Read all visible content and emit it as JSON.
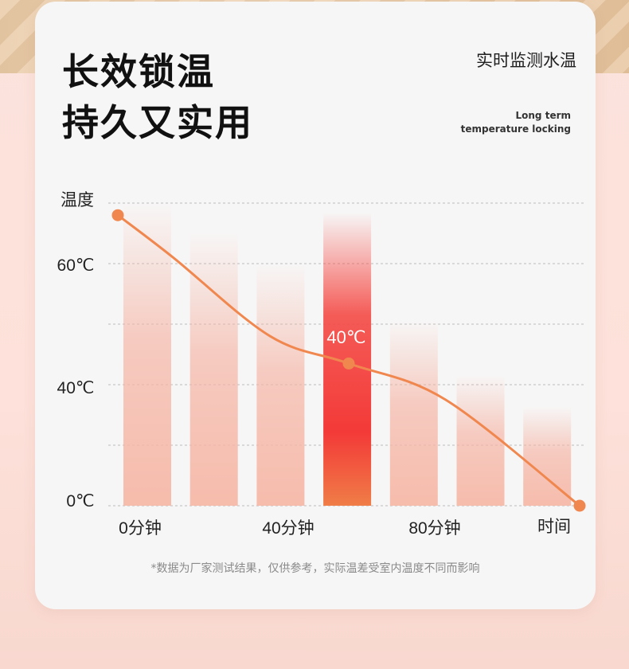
{
  "header": {
    "title_line1": "长效锁温",
    "title_line2": "持久又实用",
    "monitor_label": "实时监测水温",
    "english_line1": "Long term",
    "english_line2": "temperature locking"
  },
  "chart_data": {
    "type": "line",
    "ylabel": "温度",
    "xlabel": "时间",
    "y_ticks": [
      "60℃",
      "40℃",
      "0℃"
    ],
    "x_ticks": [
      "0分钟",
      "40分钟",
      "80分钟"
    ],
    "highlight_label": "40℃",
    "bar_levels": [
      0.95,
      0.86,
      0.76,
      0.92,
      0.58,
      0.41,
      0.31
    ],
    "highlight_index": 3,
    "curve_points": [
      {
        "t": 0,
        "temp": 0.96
      },
      {
        "t": 0.12,
        "temp": 0.82
      },
      {
        "t": 0.33,
        "temp": 0.56
      },
      {
        "t": 0.5,
        "temp": 0.47
      },
      {
        "t": 0.71,
        "temp": 0.35
      },
      {
        "t": 1.0,
        "temp": 0.0
      }
    ],
    "markers": [
      0,
      3,
      5
    ],
    "grid": true,
    "colors": {
      "curve": "#f0874f",
      "bar": "#f5b3a3",
      "highlight_top": "#f44a45",
      "highlight_bottom": "#f07d47"
    }
  },
  "footnote": "*数据为厂家测试结果，仅供参考，实际温差受室内温度不同而影响"
}
